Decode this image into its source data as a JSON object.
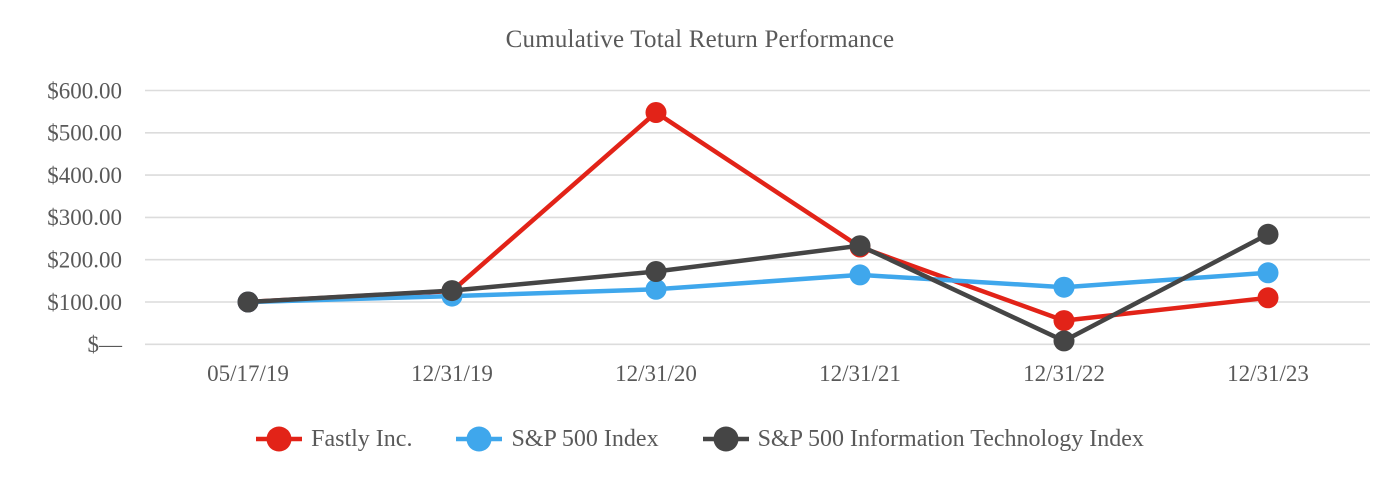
{
  "colors": {
    "background": "#ffffff",
    "text": "#595959",
    "grid": "#dcdcdc",
    "fastly_red": "#e22318",
    "sp500_blue": "#3fa7ec",
    "sp500it_gray": "#454545"
  },
  "chart_data": {
    "type": "line",
    "title": "Cumulative Total Return Performance",
    "xlabel": "",
    "ylabel": "",
    "grid": true,
    "legend_position": "bottom",
    "ylim": [
      0,
      600
    ],
    "y_ticks": [
      {
        "value": 600,
        "label": "$600.00"
      },
      {
        "value": 500,
        "label": "$500.00"
      },
      {
        "value": 400,
        "label": "$400.00"
      },
      {
        "value": 300,
        "label": "$300.00"
      },
      {
        "value": 200,
        "label": "$200.00"
      },
      {
        "value": 100,
        "label": "$100.00"
      },
      {
        "value": 0,
        "label": "$—"
      }
    ],
    "categories": [
      "05/17/19",
      "12/31/19",
      "12/31/20",
      "12/31/21",
      "12/31/22",
      "12/31/23"
    ],
    "series": [
      {
        "name": "Fastly Inc.",
        "color": "#e22318",
        "values": [
          100,
          126,
          548,
          230,
          56,
          110
        ]
      },
      {
        "name": "S&P 500 Index",
        "color": "#3fa7ec",
        "values": [
          100,
          114,
          130,
          164,
          135,
          169
        ]
      },
      {
        "name": "S&P 500 Information Technology Index",
        "color": "#454545",
        "values": [
          100,
          127,
          172,
          233,
          8,
          260
        ]
      }
    ]
  }
}
